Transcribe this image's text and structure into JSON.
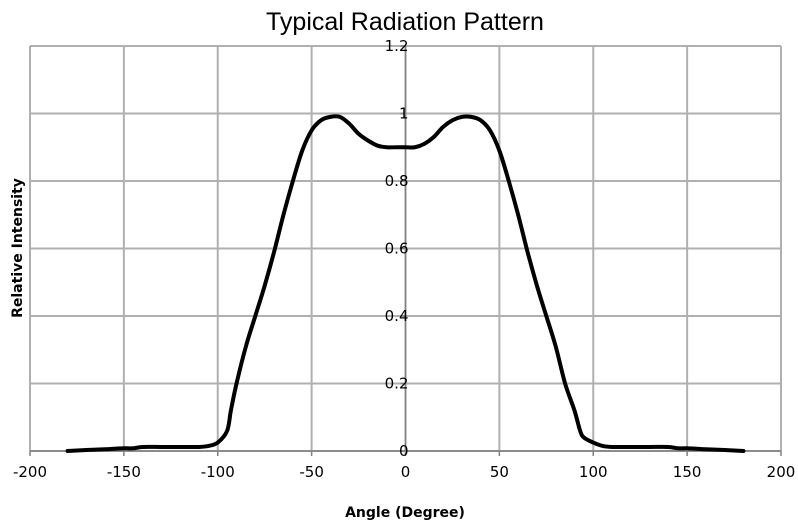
{
  "chart_data": {
    "type": "line",
    "title": "Typical Radiation Pattern",
    "xlabel": "Angle (Degree)",
    "ylabel": "Relative Intensity",
    "xlim": [
      -200,
      200
    ],
    "ylim": [
      0,
      1.2
    ],
    "xticks": [
      -200,
      -150,
      -100,
      -50,
      0,
      50,
      100,
      150,
      200
    ],
    "xtick_labels": [
      "-200",
      "-150",
      "-100",
      "-50",
      "0",
      "50",
      "100",
      "150",
      "200"
    ],
    "yticks": [
      0,
      0.2,
      0.4,
      0.6,
      0.8,
      1,
      1.2
    ],
    "ytick_labels": [
      "0",
      "0.2",
      "0.4",
      "0.6",
      "0.8",
      "1",
      "1.2"
    ],
    "grid": true,
    "legend": "none",
    "colors": {
      "line": "#000000",
      "grid": "#b0b0b0",
      "axis": "#808080"
    },
    "series": [
      {
        "x": [
          -180,
          -170,
          -160,
          -150,
          -145,
          -140,
          -130,
          -120,
          -110,
          -105,
          -100,
          -95,
          -93,
          -90,
          -85,
          -80,
          -75,
          -70,
          -65,
          -60,
          -55,
          -50,
          -45,
          -40,
          -35,
          -30,
          -25,
          -20,
          -15,
          -10,
          -5,
          0,
          5,
          10,
          15,
          20,
          25,
          30,
          35,
          40,
          45,
          50,
          55,
          60,
          65,
          70,
          75,
          80,
          85,
          90,
          93,
          95,
          100,
          105,
          110,
          120,
          130,
          140,
          145,
          150,
          160,
          170,
          180
        ],
        "y": [
          0.0,
          0.003,
          0.005,
          0.008,
          0.008,
          0.012,
          0.012,
          0.012,
          0.012,
          0.015,
          0.025,
          0.06,
          0.12,
          0.2,
          0.31,
          0.4,
          0.49,
          0.59,
          0.7,
          0.8,
          0.89,
          0.95,
          0.98,
          0.99,
          0.99,
          0.97,
          0.94,
          0.92,
          0.905,
          0.9,
          0.9,
          0.9,
          0.9,
          0.91,
          0.93,
          0.96,
          0.98,
          0.99,
          0.99,
          0.98,
          0.95,
          0.89,
          0.8,
          0.7,
          0.59,
          0.49,
          0.4,
          0.31,
          0.2,
          0.12,
          0.06,
          0.04,
          0.025,
          0.015,
          0.012,
          0.012,
          0.012,
          0.012,
          0.008,
          0.008,
          0.005,
          0.003,
          0.0
        ]
      }
    ]
  }
}
